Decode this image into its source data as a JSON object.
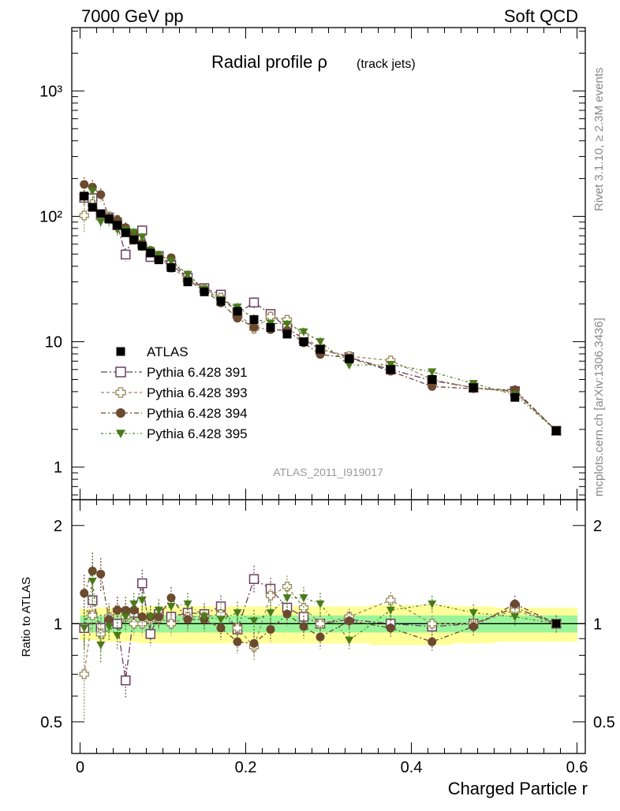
{
  "header": {
    "left": "7000 GeV pp",
    "right": "Soft QCD"
  },
  "side_labels": {
    "rivet": "Rivet 3.1.10, ≥ 2.3M events",
    "mcplots": "mcplots.cern.ch [arXiv:1306.3436]"
  },
  "chart_data": {
    "type": "scatter",
    "title_main": "Radial profile ρ",
    "title_sub": "(track jets)",
    "analysis_label": "ATLAS_2011_I919017",
    "xlabel": "Charged Particle r",
    "ylabel_main": "",
    "ylabel_ratio": "Ratio to ATLAS",
    "x_ticks": [
      "0",
      "0.2",
      "0.4",
      "0.6"
    ],
    "main_y_ticks": [
      "1",
      "10",
      "10²",
      "10³"
    ],
    "ratio_y_ticks": [
      "0.5",
      "1",
      "2"
    ],
    "xlim": [
      -0.01,
      0.61
    ],
    "main_ylim": [
      0.55,
      3200
    ],
    "main_yscale": "log",
    "ratio_ylim": [
      0.4,
      2.4
    ],
    "ratio_yscale": "log",
    "legend_position": "lower-left",
    "x": [
      0.005,
      0.015,
      0.025,
      0.035,
      0.045,
      0.055,
      0.065,
      0.075,
      0.085,
      0.095,
      0.11,
      0.13,
      0.15,
      0.17,
      0.19,
      0.21,
      0.23,
      0.25,
      0.27,
      0.29,
      0.325,
      0.375,
      0.425,
      0.475,
      0.525,
      0.575
    ],
    "data": {
      "name": "ATLAS",
      "values": [
        145,
        118,
        105,
        95,
        85,
        74,
        65,
        58,
        51,
        45,
        39,
        30,
        25,
        21,
        17.5,
        15,
        13,
        11.5,
        10,
        8.7,
        7.3,
        6.0,
        5.0,
        4.3,
        3.6,
        1.95
      ]
    },
    "uncertainty_bands": {
      "inner_halfwidth": [
        0.06,
        0.06,
        0.06,
        0.06,
        0.06,
        0.06,
        0.06,
        0.06,
        0.06,
        0.06,
        0.06,
        0.06,
        0.06,
        0.06,
        0.06,
        0.06,
        0.06,
        0.06,
        0.06,
        0.06,
        0.06,
        0.06,
        0.06,
        0.06,
        0.06,
        0.06
      ],
      "outer_halfwidth": [
        0.11,
        0.11,
        0.12,
        0.12,
        0.12,
        0.12,
        0.12,
        0.13,
        0.13,
        0.13,
        0.13,
        0.13,
        0.13,
        0.13,
        0.13,
        0.13,
        0.13,
        0.13,
        0.13,
        0.13,
        0.13,
        0.14,
        0.14,
        0.13,
        0.12,
        0.12
      ]
    },
    "series": [
      {
        "name": "Pythia 6.428 391",
        "color": "#6b4060",
        "marker": "open-square",
        "ratio": [
          0.97,
          1.18,
          0.97,
          1.03,
          1.0,
          0.67,
          1.08,
          1.33,
          0.93,
          1.07,
          1.05,
          1.08,
          1.07,
          1.13,
          0.96,
          1.37,
          1.28,
          1.12,
          1.05,
          1.0,
          1.03,
          1.0,
          0.98,
          1.0,
          1.12,
          1.0
        ],
        "err": [
          0.12,
          0.1,
          0.1,
          0.08,
          0.08,
          0.12,
          0.08,
          0.1,
          0.08,
          0.08,
          0.08,
          0.08,
          0.08,
          0.08,
          0.08,
          0.1,
          0.08,
          0.08,
          0.08,
          0.08,
          0.06,
          0.06,
          0.06,
          0.06,
          0.06,
          0.06
        ]
      },
      {
        "name": "Pythia 6.428 393",
        "color": "#9a8a5a",
        "marker": "open-cross",
        "ratio": [
          0.7,
          1.06,
          0.93,
          1.05,
          1.1,
          1.05,
          1.0,
          1.0,
          1.03,
          1.04,
          1.0,
          1.05,
          1.05,
          1.07,
          0.97,
          0.85,
          1.22,
          1.3,
          1.12,
          1.0,
          1.05,
          1.18,
          1.0,
          1.0,
          1.1,
          1.0
        ],
        "err": [
          0.28,
          0.12,
          0.12,
          0.1,
          0.1,
          0.1,
          0.08,
          0.08,
          0.08,
          0.08,
          0.08,
          0.08,
          0.08,
          0.08,
          0.08,
          0.1,
          0.1,
          0.08,
          0.08,
          0.08,
          0.06,
          0.06,
          0.06,
          0.06,
          0.06,
          0.06
        ]
      },
      {
        "name": "Pythia 6.428 394",
        "color": "#6b4a30",
        "marker": "filled-circle",
        "ratio": [
          1.24,
          1.45,
          1.42,
          1.03,
          1.1,
          1.1,
          1.1,
          1.05,
          1.05,
          1.05,
          1.2,
          1.03,
          1.03,
          0.97,
          0.88,
          0.87,
          0.96,
          1.07,
          0.98,
          0.91,
          1.02,
          0.97,
          0.88,
          0.98,
          1.15,
          1.0
        ],
        "err": [
          0.14,
          0.14,
          0.12,
          0.1,
          0.1,
          0.1,
          0.08,
          0.08,
          0.08,
          0.08,
          0.08,
          0.08,
          0.08,
          0.08,
          0.08,
          0.08,
          0.08,
          0.08,
          0.08,
          0.08,
          0.06,
          0.06,
          0.06,
          0.06,
          0.06,
          0.06
        ]
      },
      {
        "name": "Pythia 6.428 395",
        "color": "#4a7a1a",
        "marker": "filled-triangle-down",
        "ratio": [
          0.97,
          1.35,
          0.86,
          0.98,
          0.92,
          1.05,
          1.15,
          1.18,
          1.05,
          1.1,
          1.13,
          1.15,
          1.05,
          1.03,
          1.08,
          1.02,
          1.08,
          1.2,
          1.2,
          1.15,
          0.89,
          1.1,
          1.15,
          1.08,
          1.05,
          1.0
        ],
        "err": [
          0.14,
          0.14,
          0.12,
          0.1,
          0.1,
          0.1,
          0.08,
          0.08,
          0.08,
          0.08,
          0.08,
          0.08,
          0.08,
          0.08,
          0.08,
          0.08,
          0.08,
          0.08,
          0.08,
          0.08,
          0.06,
          0.06,
          0.06,
          0.06,
          0.06,
          0.06
        ]
      }
    ]
  }
}
